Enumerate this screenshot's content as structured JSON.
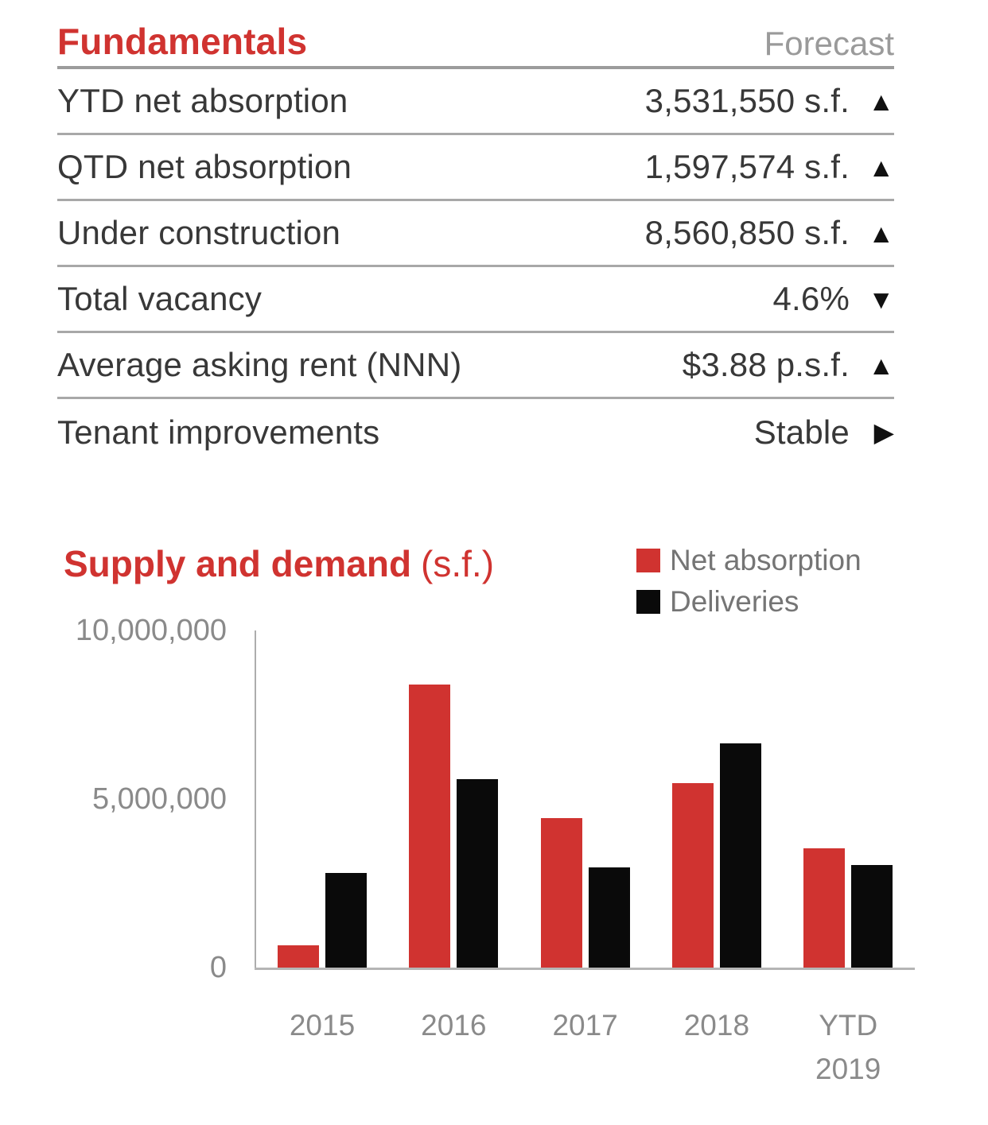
{
  "table": {
    "title": "Fundamentals",
    "forecast_label": "Forecast",
    "rows": [
      {
        "label": "YTD net absorption",
        "value": "3,531,550 s.f.",
        "trend": "up"
      },
      {
        "label": "QTD net absorption",
        "value": "1,597,574 s.f.",
        "trend": "up"
      },
      {
        "label": "Under construction",
        "value": "8,560,850 s.f.",
        "trend": "up"
      },
      {
        "label": "Total vacancy",
        "value": "4.6%",
        "trend": "down"
      },
      {
        "label": "Average asking rent (NNN)",
        "value": "$3.88 p.s.f.",
        "trend": "up"
      },
      {
        "label": "Tenant improvements",
        "value": "Stable",
        "trend": "stable"
      }
    ]
  },
  "icons": {
    "up": "▲",
    "down": "▼",
    "stable": "▶"
  },
  "chart_header": {
    "title": "Supply and demand",
    "unit": "(s.f.)"
  },
  "chart_data": {
    "type": "bar",
    "title": "Supply and demand (s.f.)",
    "categories": [
      "2015",
      "2016",
      "2017",
      "2018",
      "YTD\n2019"
    ],
    "series": [
      {
        "name": "Net absorption",
        "color": "#d03330",
        "values": [
          650000,
          8400000,
          4430000,
          5470000,
          3531550
        ]
      },
      {
        "name": "Deliveries",
        "color": "#0a0a0a",
        "values": [
          2800000,
          5580000,
          2980000,
          6640000,
          3050000
        ]
      }
    ],
    "xlabel": "",
    "ylabel": "",
    "ylim": [
      0,
      10000000
    ],
    "yticks": [
      0,
      5000000,
      10000000
    ],
    "ytick_labels": [
      "0",
      "5,000,000",
      "10,000,000"
    ],
    "grid": false,
    "legend_position": "top-right"
  },
  "colors": {
    "accent_red": "#d03330",
    "bar_black": "#0a0a0a",
    "table_text": "#383838",
    "muted_gray": "#9a9a9a",
    "axis_text": "#8a8a8a",
    "legend_text": "#757575",
    "separator": "#a8a8a8"
  }
}
